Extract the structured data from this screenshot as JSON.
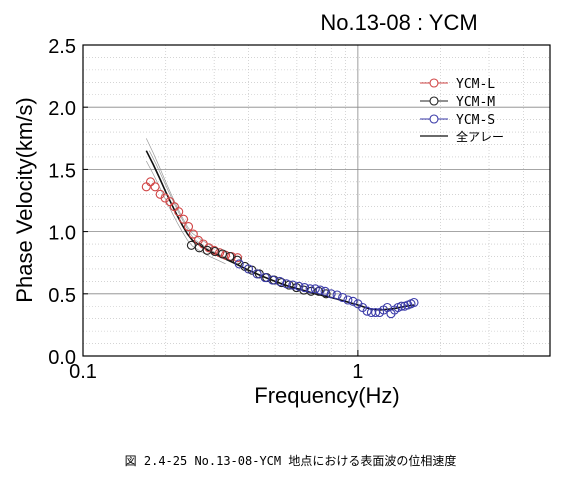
{
  "chart_data": {
    "type": "scatter",
    "title": "No.13-08 : YCM",
    "xlabel": "Frequency(Hz)",
    "ylabel": "Phase Velocity(km/s)",
    "xscale": "log",
    "xlim": [
      0.1,
      5.0
    ],
    "ylim": [
      0.0,
      2.5
    ],
    "x_ticks": [
      0.1,
      1
    ],
    "x_tick_labels": [
      "0.1",
      "1"
    ],
    "y_ticks": [
      0.0,
      0.5,
      1.0,
      1.5,
      2.0,
      2.5
    ],
    "y_tick_labels": [
      "0.0",
      "0.5",
      "1.0",
      "1.5",
      "2.0",
      "2.5"
    ],
    "grid": true,
    "legend_position": "top-right",
    "series": [
      {
        "name": "YCM-L",
        "color": "#d04545",
        "marker": "open-circle",
        "x": [
          0.17,
          0.176,
          0.183,
          0.191,
          0.199,
          0.207,
          0.215,
          0.223,
          0.232,
          0.242,
          0.252,
          0.263,
          0.274,
          0.287,
          0.3,
          0.314,
          0.33,
          0.347,
          0.365
        ],
        "y": [
          1.36,
          1.4,
          1.36,
          1.3,
          1.27,
          1.24,
          1.2,
          1.16,
          1.1,
          1.04,
          0.98,
          0.93,
          0.9,
          0.87,
          0.85,
          0.83,
          0.81,
          0.8,
          0.79
        ]
      },
      {
        "name": "YCM-M",
        "color": "#222222",
        "marker": "open-circle",
        "x": [
          0.248,
          0.265,
          0.283,
          0.302,
          0.322,
          0.342,
          0.364,
          0.388,
          0.412,
          0.438,
          0.466,
          0.496,
          0.528,
          0.562,
          0.598,
          0.636,
          0.676,
          0.72,
          0.766
        ],
        "y": [
          0.89,
          0.87,
          0.85,
          0.84,
          0.82,
          0.8,
          0.77,
          0.72,
          0.69,
          0.66,
          0.63,
          0.61,
          0.59,
          0.57,
          0.55,
          0.53,
          0.52,
          0.52,
          0.5
        ]
      },
      {
        "name": "YCM-S",
        "color": "#3a3aa8",
        "marker": "open-circle",
        "x": [
          0.37,
          0.4,
          0.43,
          0.46,
          0.49,
          0.52,
          0.55,
          0.58,
          0.61,
          0.64,
          0.67,
          0.7,
          0.73,
          0.76,
          0.8,
          0.84,
          0.88,
          0.92,
          0.96,
          1.0,
          1.04,
          1.08,
          1.12,
          1.16,
          1.2,
          1.24,
          1.28,
          1.32,
          1.36,
          1.4,
          1.44,
          1.48,
          1.52,
          1.56,
          1.6
        ],
        "y": [
          0.74,
          0.7,
          0.66,
          0.63,
          0.61,
          0.6,
          0.58,
          0.57,
          0.56,
          0.55,
          0.54,
          0.54,
          0.53,
          0.52,
          0.5,
          0.49,
          0.47,
          0.45,
          0.44,
          0.42,
          0.39,
          0.36,
          0.35,
          0.35,
          0.35,
          0.37,
          0.39,
          0.34,
          0.37,
          0.39,
          0.4,
          0.4,
          0.41,
          0.42,
          0.43
        ]
      },
      {
        "name": "全アレー",
        "color": "#111111",
        "marker": "line",
        "x": [
          0.17,
          0.18,
          0.19,
          0.2,
          0.21,
          0.22,
          0.23,
          0.24,
          0.25,
          0.27,
          0.29,
          0.31,
          0.33,
          0.36,
          0.4,
          0.45,
          0.5,
          0.56,
          0.63,
          0.7,
          0.8,
          0.9,
          1.0,
          1.1,
          1.2,
          1.35,
          1.5,
          1.6
        ],
        "y": [
          1.65,
          1.54,
          1.43,
          1.32,
          1.22,
          1.13,
          1.05,
          0.98,
          0.93,
          0.88,
          0.84,
          0.81,
          0.78,
          0.74,
          0.69,
          0.64,
          0.6,
          0.56,
          0.53,
          0.5,
          0.47,
          0.44,
          0.41,
          0.38,
          0.37,
          0.38,
          0.4,
          0.41
        ]
      }
    ],
    "caption": "図 2.4-25   No.13-08-YCM 地点における表面波の位相速度"
  }
}
